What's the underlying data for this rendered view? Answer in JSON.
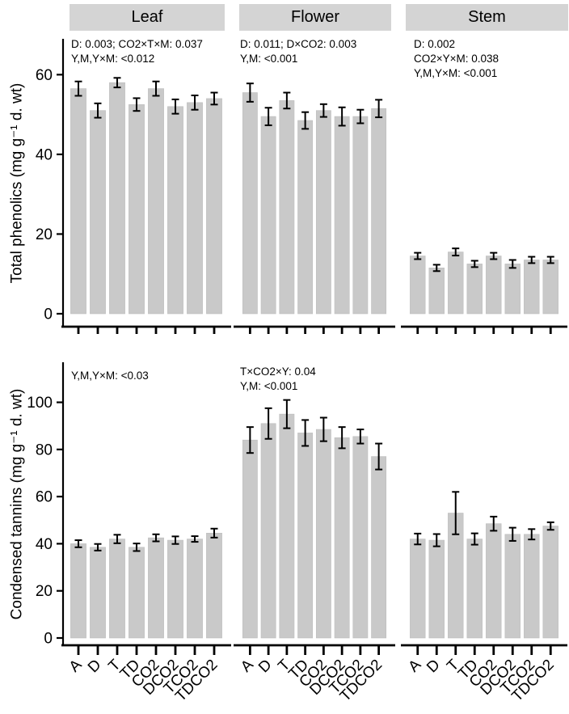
{
  "chart_data": {
    "type": "bar",
    "categories": [
      "A",
      "D",
      "T",
      "TD",
      "CO2",
      "DCO2",
      "TCO2",
      "TDCO2"
    ],
    "columns": [
      "Leaf",
      "Flower",
      "Stem"
    ],
    "bar_color": "#c9c9c9",
    "bar_edge_color": "#bdbdbd",
    "strip_color": "#d4d4d4",
    "axis_color": "#000000",
    "legend": "none",
    "grid": "off",
    "rows": [
      {
        "ylabel": "Total phenolics (mg g⁻¹ d. wt)",
        "ylim": [
          0,
          69
        ],
        "yticks": [
          0,
          20,
          40,
          60
        ],
        "panels": [
          {
            "column": "Leaf",
            "annotations": [
              "D: 0.003; CO2×T×M: 0.037",
              "Y,M,Y×M: <0.012"
            ],
            "values": [
              56.5,
              51,
              58,
              52.5,
              56.5,
              52,
              53,
              54
            ],
            "errors": [
              1.8,
              1.8,
              1.2,
              1.6,
              1.8,
              1.8,
              1.8,
              1.5
            ]
          },
          {
            "column": "Flower",
            "annotations": [
              "D: 0.011; D×CO2: 0.003",
              "Y,M: <0.001"
            ],
            "values": [
              55.5,
              49.5,
              53.5,
              48.5,
              51,
              49.5,
              49.5,
              51.5
            ],
            "errors": [
              2.3,
              2.2,
              2,
              2.1,
              1.6,
              2.3,
              1.7,
              2.2
            ]
          },
          {
            "column": "Stem",
            "annotations": [
              "D: 0.002",
              "CO2×Y×M: 0.038",
              "Y,M,Y×M: <0.001"
            ],
            "values": [
              14.5,
              11.5,
              15.5,
              12.5,
              14.5,
              12.5,
              13.5,
              13.5
            ],
            "errors": [
              0.8,
              0.8,
              0.9,
              0.8,
              0.8,
              1.0,
              0.8,
              0.8
            ]
          }
        ]
      },
      {
        "ylabel": "Condensed tannins (mg g⁻¹ d. wt)",
        "ylim": [
          0,
          117
        ],
        "yticks": [
          0,
          20,
          40,
          60,
          80,
          100
        ],
        "panels": [
          {
            "column": "Leaf",
            "annotations": [
              "Y,M,Y×M: <0.03"
            ],
            "values": [
              40,
              38.5,
              42,
              38.5,
              42.5,
              41.5,
              42,
              44.5
            ],
            "errors": [
              1.5,
              1.4,
              1.8,
              1.6,
              1.5,
              1.6,
              1.2,
              1.9
            ]
          },
          {
            "column": "Flower",
            "annotations": [
              "T×CO2×Y: 0.04",
              "Y,M: <0.001"
            ],
            "values": [
              84,
              91,
              95,
              87,
              88.5,
              85,
              85.5,
              77
            ],
            "errors": [
              5.5,
              6.5,
              6,
              5.5,
              5,
              4.5,
              3,
              5.5
            ]
          },
          {
            "column": "Stem",
            "annotations": [],
            "values": [
              42,
              41.5,
              53,
              42,
              48.5,
              44,
              44,
              47.5
            ],
            "errors": [
              2.3,
              2.6,
              9,
              2.4,
              3,
              2.8,
              2.2,
              1.6
            ]
          }
        ]
      }
    ]
  }
}
